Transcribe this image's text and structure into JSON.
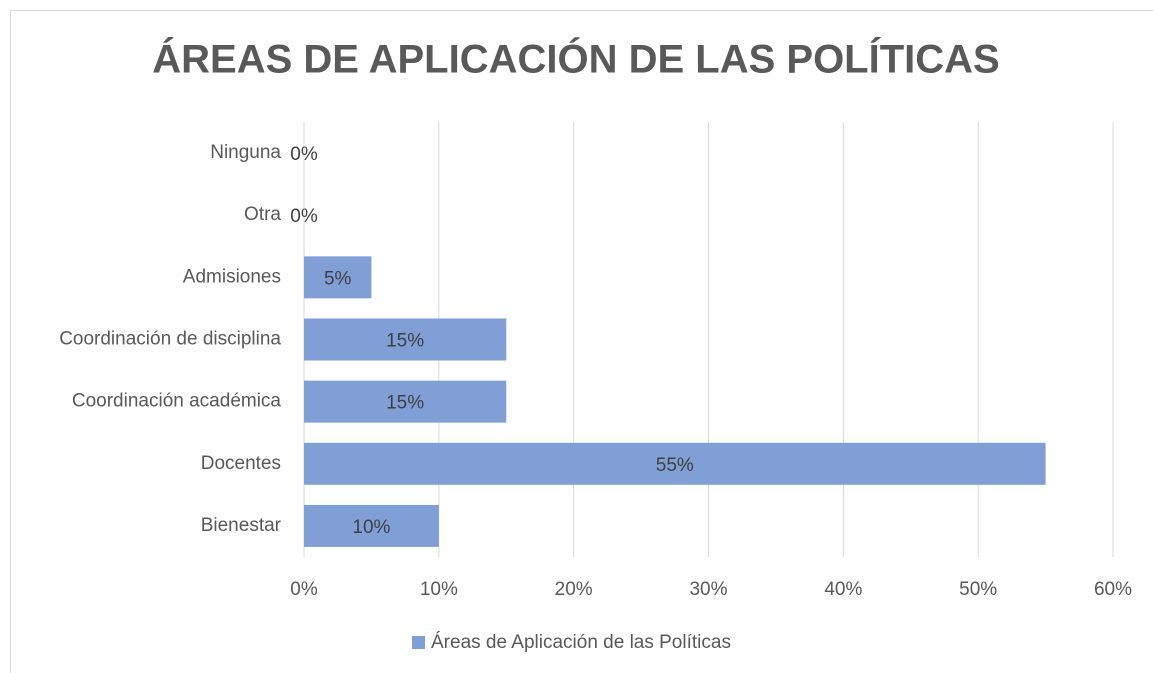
{
  "chart_data": {
    "type": "bar",
    "orientation": "horizontal",
    "title": "ÁREAS DE APLICACIÓN DE LAS POLÍTICAS",
    "categories": [
      "Ninguna",
      "Otra",
      "Admisiones",
      "Coordinación de disciplina",
      "Coordinación académica",
      "Docentes",
      "Bienestar"
    ],
    "series": [
      {
        "name": "Áreas de Aplicación de las Políticas",
        "color": "#7f9fd6",
        "values": [
          0,
          0,
          5,
          15,
          15,
          55,
          10
        ],
        "value_labels": [
          "0%",
          "0%",
          "5%",
          "15%",
          "15%",
          "55%",
          "10%"
        ]
      }
    ],
    "xlim": [
      0,
      60
    ],
    "xticks": [
      {
        "value": 0,
        "label": "0%"
      },
      {
        "value": 10,
        "label": "10%"
      },
      {
        "value": 20,
        "label": "20%"
      },
      {
        "value": 30,
        "label": "30%"
      },
      {
        "value": 40,
        "label": "40%"
      },
      {
        "value": 50,
        "label": "50%"
      },
      {
        "value": 60,
        "label": "60%"
      }
    ],
    "grid": true,
    "legend": "bottom"
  }
}
